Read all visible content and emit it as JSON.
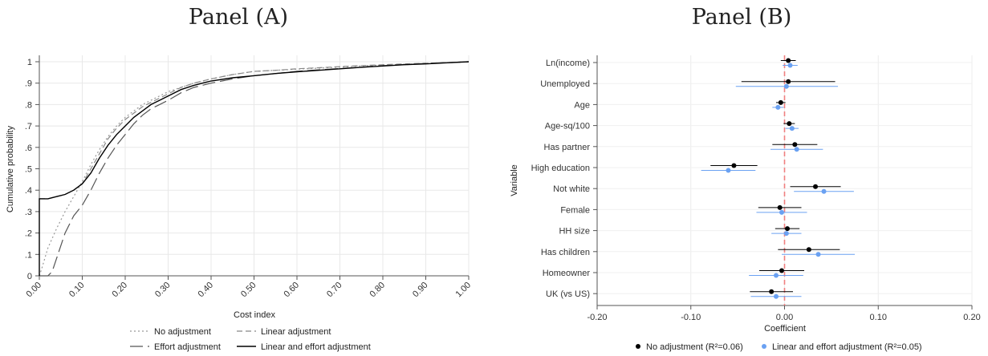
{
  "chart_data": [
    {
      "panel_title": "Panel (A)",
      "type": "line",
      "xlabel": "Cost index",
      "ylabel": "Cumulative probability",
      "xlim": [
        0,
        1
      ],
      "ylim": [
        0,
        1
      ],
      "x_ticks": [
        "0.00",
        "0.10",
        "0.20",
        "0.30",
        "0.40",
        "0.50",
        "0.60",
        "0.70",
        "0.80",
        "0.90",
        "1.00"
      ],
      "y_ticks": [
        "0",
        ".1",
        ".2",
        ".3",
        ".4",
        ".5",
        ".6",
        ".7",
        ".8",
        ".9",
        "1"
      ],
      "grid": true,
      "legend_position": "bottom",
      "series": [
        {
          "name": "No adjustment",
          "style": "dotted",
          "color": "#999999",
          "x": [
            0.0,
            0.005,
            0.02,
            0.04,
            0.06,
            0.08,
            0.1,
            0.12,
            0.14,
            0.16,
            0.18,
            0.2,
            0.22,
            0.24,
            0.26,
            0.28,
            0.3,
            0.33,
            0.36,
            0.4,
            0.45,
            0.5,
            0.55,
            0.6,
            0.65,
            0.7,
            0.75,
            0.8,
            0.85,
            0.9,
            0.95,
            1.0
          ],
          "y": [
            0.0,
            0.03,
            0.13,
            0.22,
            0.3,
            0.37,
            0.44,
            0.52,
            0.59,
            0.65,
            0.7,
            0.74,
            0.77,
            0.8,
            0.82,
            0.84,
            0.86,
            0.88,
            0.9,
            0.92,
            0.94,
            0.955,
            0.96,
            0.965,
            0.97,
            0.975,
            0.98,
            0.985,
            0.988,
            0.992,
            0.995,
            1.0
          ]
        },
        {
          "name": "Linear adjustment",
          "style": "dashed",
          "color": "#888888",
          "x": [
            0.0,
            0.02,
            0.04,
            0.06,
            0.08,
            0.1,
            0.12,
            0.14,
            0.16,
            0.18,
            0.2,
            0.22,
            0.24,
            0.26,
            0.28,
            0.3,
            0.33,
            0.36,
            0.4,
            0.45,
            0.5,
            0.55,
            0.6,
            0.65,
            0.7,
            0.75,
            0.8,
            0.85,
            0.9,
            0.95,
            1.0
          ],
          "y": [
            0.36,
            0.36,
            0.37,
            0.38,
            0.4,
            0.43,
            0.5,
            0.57,
            0.64,
            0.69,
            0.73,
            0.76,
            0.79,
            0.81,
            0.83,
            0.85,
            0.88,
            0.9,
            0.92,
            0.94,
            0.955,
            0.96,
            0.967,
            0.972,
            0.977,
            0.982,
            0.986,
            0.99,
            0.993,
            0.996,
            1.0
          ]
        },
        {
          "name": "Effort adjustment",
          "style": "longdash",
          "color": "#555555",
          "x": [
            0.0,
            0.02,
            0.03,
            0.04,
            0.06,
            0.08,
            0.1,
            0.12,
            0.14,
            0.16,
            0.18,
            0.2,
            0.22,
            0.24,
            0.26,
            0.28,
            0.3,
            0.33,
            0.36,
            0.4,
            0.45,
            0.5,
            0.55,
            0.6,
            0.65,
            0.7,
            0.75,
            0.8,
            0.85,
            0.9,
            0.95,
            1.0
          ],
          "y": [
            0.0,
            0.0,
            0.02,
            0.08,
            0.2,
            0.28,
            0.33,
            0.4,
            0.48,
            0.55,
            0.61,
            0.66,
            0.71,
            0.75,
            0.78,
            0.8,
            0.82,
            0.855,
            0.88,
            0.9,
            0.92,
            0.935,
            0.945,
            0.955,
            0.962,
            0.968,
            0.975,
            0.982,
            0.987,
            0.992,
            0.996,
            1.0
          ]
        },
        {
          "name": "Linear and effort adjustment",
          "style": "solid",
          "color": "#000000",
          "x": [
            0.0,
            0.0,
            0.02,
            0.04,
            0.06,
            0.08,
            0.1,
            0.12,
            0.14,
            0.16,
            0.18,
            0.2,
            0.22,
            0.24,
            0.26,
            0.28,
            0.3,
            0.33,
            0.36,
            0.4,
            0.45,
            0.5,
            0.55,
            0.6,
            0.65,
            0.7,
            0.75,
            0.8,
            0.85,
            0.9,
            0.95,
            1.0
          ],
          "y": [
            0.0,
            0.36,
            0.36,
            0.37,
            0.38,
            0.4,
            0.43,
            0.48,
            0.55,
            0.61,
            0.66,
            0.7,
            0.74,
            0.77,
            0.8,
            0.82,
            0.84,
            0.87,
            0.89,
            0.91,
            0.925,
            0.935,
            0.945,
            0.953,
            0.96,
            0.967,
            0.974,
            0.98,
            0.986,
            0.99,
            0.995,
            1.0
          ]
        }
      ]
    },
    {
      "panel_title": "Panel (B)",
      "type": "scatter",
      "xlabel": "Coefficient",
      "ylabel": "Variable",
      "xlim": [
        -0.2,
        0.2
      ],
      "x_ticks": [
        "-0.20",
        "-0.10",
        "0.00",
        "0.10",
        "0.20"
      ],
      "x_tick_values": [
        -0.2,
        -0.1,
        0.0,
        0.1,
        0.2
      ],
      "reference_line_x": 0,
      "grid": true,
      "legend_position": "bottom",
      "categories": [
        "Ln(income)",
        "Unemployed",
        "Age",
        "Age-sq/100",
        "Has partner",
        "High education",
        "Not white",
        "Female",
        "HH size",
        "Has children",
        "Homeowner",
        "UK (vs US)"
      ],
      "series": [
        {
          "name": "No adjustment (R²=0.06)",
          "color": "#000000",
          "values": [
            0.004,
            0.004,
            -0.004,
            0.005,
            0.011,
            -0.054,
            0.033,
            -0.005,
            0.003,
            0.026,
            -0.003,
            -0.014
          ],
          "ci_low": [
            -0.004,
            -0.046,
            -0.009,
            -0.001,
            -0.013,
            -0.079,
            0.006,
            -0.028,
            -0.01,
            -0.007,
            -0.027,
            -0.037
          ],
          "ci_high": [
            0.012,
            0.054,
            0.001,
            0.011,
            0.035,
            -0.029,
            0.06,
            0.018,
            0.016,
            0.059,
            0.021,
            0.009
          ]
        },
        {
          "name": "Linear and effort adjustment (R²=0.05)",
          "color": "#6aa1f2",
          "values": [
            0.006,
            0.002,
            -0.007,
            0.008,
            0.013,
            -0.06,
            0.042,
            -0.003,
            0.002,
            0.036,
            -0.009,
            -0.009
          ],
          "ci_low": [
            -0.002,
            -0.052,
            -0.013,
            0.001,
            -0.015,
            -0.089,
            0.01,
            -0.03,
            -0.014,
            -0.003,
            -0.038,
            -0.036
          ],
          "ci_high": [
            0.014,
            0.057,
            -0.001,
            0.015,
            0.041,
            -0.031,
            0.074,
            0.024,
            0.018,
            0.075,
            0.02,
            0.018
          ]
        }
      ]
    }
  ]
}
